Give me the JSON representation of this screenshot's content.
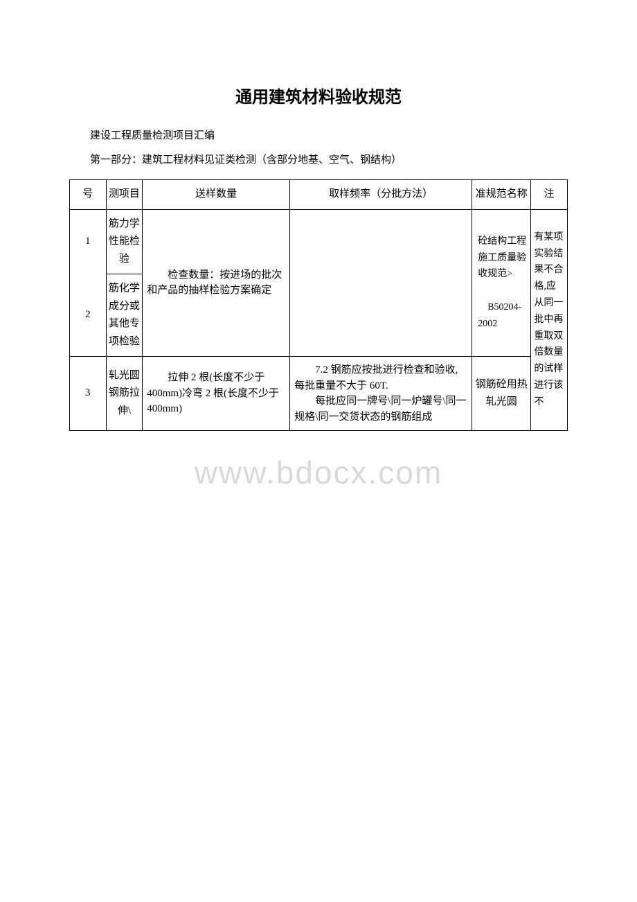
{
  "title": "通用建筑材料验收规范",
  "subtitle": "建设工程质量检测项目汇编",
  "section_title": "第一部分：建筑工程材料见证类检测（含部分地基、空气、钢结构）",
  "watermark": "www.bdocx.com",
  "table": {
    "header": {
      "col1": "号",
      "col2": "测项目",
      "col3": "送样数量",
      "col4": "取样频率（分批方法）",
      "col5": "准规范名称",
      "col6": "注"
    },
    "rows": [
      {
        "num": "1",
        "item": "筋力学性能检验",
        "qty": "　　检查数量：按进场的批次和产品的抽样检验方案确定",
        "freq": "",
        "standard": "砼结构工程施工质量验收规范>\n\n　B50204-2002",
        "notes": "有某项实验结果不合格,应从同一批中再重取双倍数量的试样进行该不"
      },
      {
        "num": "2",
        "item": "筋化学成分或其他专项检验",
        "qty": "",
        "freq": "",
        "standard": "",
        "notes": ""
      },
      {
        "num": "3",
        "item": "轧光圆钢筋拉伸\\",
        "qty": "　　拉伸 2 根(长度不少于400mm)冷弯 2 根(长度不少于400mm)",
        "freq": "　　7.2 钢筋应按批进行检查和验收,每批重量不大于 60T.\n　　每批应同一牌号\\同一炉罐号\\同一规格\\同一交货状态的钢筋组成",
        "standard": "钢筋砼用热轧光圆",
        "notes": ""
      }
    ]
  }
}
